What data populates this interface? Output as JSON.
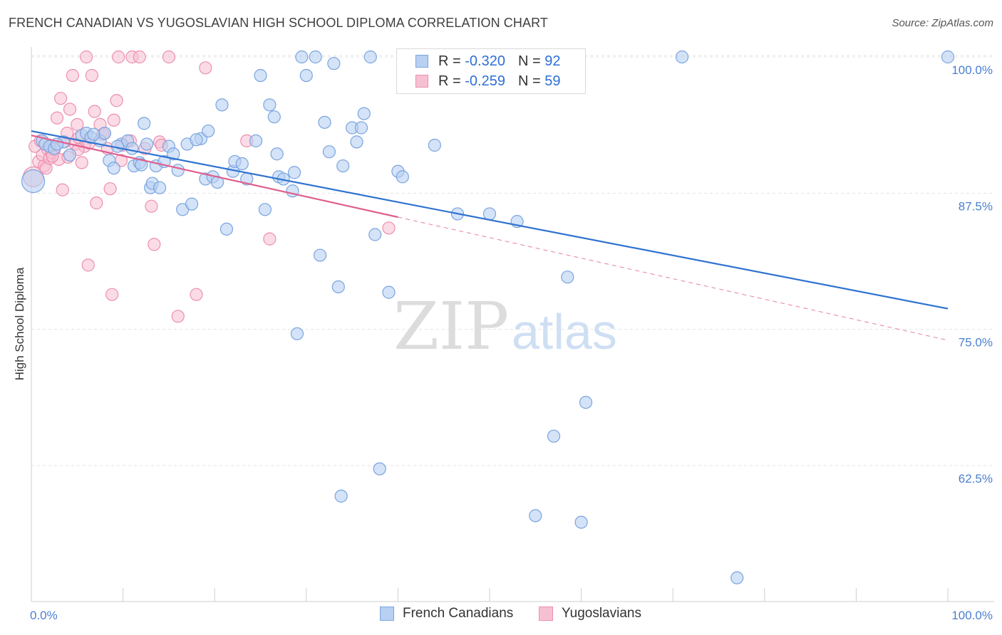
{
  "title": "FRENCH CANADIAN VS YUGOSLAVIAN HIGH SCHOOL DIPLOMA CORRELATION CHART",
  "source": "Source: ZipAtlas.com",
  "watermark": {
    "zip": "ZIP",
    "atlas": "atlas"
  },
  "legend": {
    "row1": {
      "r_label": "R =",
      "r_value": "-0.320",
      "n_label": "N =",
      "n_value": "92"
    },
    "row2": {
      "r_label": "R =",
      "r_value": "-0.259",
      "n_label": "N =",
      "n_value": "59"
    }
  },
  "bottom_legend": {
    "french": "French Canadians",
    "yugo": "Yugoslavians"
  },
  "colors": {
    "blue_fill": "#b8d0f2",
    "blue_stroke": "#7aa4df",
    "blue_line": "#2f72d0",
    "pink_fill": "#f7c0d2",
    "pink_stroke": "#ec8fae",
    "pink_line": "#e05e8e",
    "grid": "#e3e3e3",
    "tick_text": "#4a7fd1"
  },
  "chart_data": {
    "type": "scatter",
    "title": "FRENCH CANADIAN VS YUGOSLAVIAN HIGH SCHOOL DIPLOMA CORRELATION CHART",
    "xlabel": "",
    "ylabel": "High School Diploma",
    "xlim": [
      0,
      100
    ],
    "ylim": [
      50,
      101.5
    ],
    "x_tick_labels": [
      "0.0%",
      "100.0%"
    ],
    "y_ticks": [
      62.5,
      75.0,
      87.5,
      100.0
    ],
    "y_tick_labels": [
      "62.5%",
      "75.0%",
      "87.5%",
      "100.0%"
    ],
    "series": [
      {
        "name": "French Canadians",
        "r": -0.32,
        "n": 92,
        "trend": {
          "x": [
            0,
            100
          ],
          "y": [
            93.2,
            76.9
          ]
        },
        "points": [
          [
            0.2,
            88.6
          ],
          [
            1.2,
            92.3
          ],
          [
            1.5,
            92.0
          ],
          [
            2.0,
            91.8
          ],
          [
            2.5,
            91.6
          ],
          [
            3.5,
            92.2
          ],
          [
            4.2,
            91.0
          ],
          [
            5.5,
            92.8
          ],
          [
            6.0,
            93.0
          ],
          [
            6.5,
            92.6
          ],
          [
            7.5,
            92.3
          ],
          [
            8.0,
            93.0
          ],
          [
            8.5,
            90.5
          ],
          [
            9.0,
            89.8
          ],
          [
            9.8,
            92.0
          ],
          [
            10.5,
            92.3
          ],
          [
            11.0,
            91.6
          ],
          [
            11.2,
            90.0
          ],
          [
            11.8,
            90.3
          ],
          [
            12.3,
            93.9
          ],
          [
            12.6,
            92.0
          ],
          [
            13.0,
            88.0
          ],
          [
            13.2,
            88.4
          ],
          [
            13.6,
            90.0
          ],
          [
            14.0,
            88.0
          ],
          [
            14.5,
            90.4
          ],
          [
            15.0,
            91.8
          ],
          [
            15.5,
            91.1
          ],
          [
            16.0,
            89.6
          ],
          [
            16.5,
            86.0
          ],
          [
            17.0,
            92.0
          ],
          [
            17.5,
            86.5
          ],
          [
            18.5,
            92.5
          ],
          [
            19.0,
            88.8
          ],
          [
            19.3,
            93.2
          ],
          [
            19.8,
            89.0
          ],
          [
            20.3,
            88.5
          ],
          [
            20.8,
            95.6
          ],
          [
            21.3,
            84.2
          ],
          [
            22.0,
            89.5
          ],
          [
            22.2,
            90.4
          ],
          [
            23.0,
            90.2
          ],
          [
            23.5,
            88.8
          ],
          [
            24.5,
            92.3
          ],
          [
            25.0,
            98.3
          ],
          [
            25.5,
            86.0
          ],
          [
            26.0,
            95.6
          ],
          [
            26.5,
            94.5
          ],
          [
            26.8,
            91.1
          ],
          [
            27.0,
            89.0
          ],
          [
            27.5,
            88.8
          ],
          [
            28.5,
            87.7
          ],
          [
            28.7,
            89.4
          ],
          [
            29.0,
            74.6
          ],
          [
            29.5,
            100.0
          ],
          [
            30.0,
            98.3
          ],
          [
            31.0,
            100.0
          ],
          [
            31.5,
            81.8
          ],
          [
            32.0,
            94.0
          ],
          [
            32.5,
            91.3
          ],
          [
            33.0,
            99.4
          ],
          [
            33.5,
            78.9
          ],
          [
            34.0,
            90.0
          ],
          [
            35.0,
            93.5
          ],
          [
            35.5,
            92.2
          ],
          [
            36.0,
            93.5
          ],
          [
            36.3,
            94.8
          ],
          [
            37.0,
            100.0
          ],
          [
            37.5,
            83.7
          ],
          [
            38.0,
            62.2
          ],
          [
            39.0,
            78.4
          ],
          [
            40.0,
            89.5
          ],
          [
            40.5,
            89.0
          ],
          [
            44.0,
            91.9
          ],
          [
            46.5,
            85.6
          ],
          [
            47.5,
            100.0
          ],
          [
            50.0,
            85.6
          ],
          [
            53.0,
            84.9
          ],
          [
            55.0,
            57.9
          ],
          [
            57.0,
            65.2
          ],
          [
            58.5,
            79.8
          ],
          [
            60.0,
            57.3
          ],
          [
            60.5,
            68.3
          ],
          [
            71.0,
            100.0
          ],
          [
            77.0,
            52.2
          ],
          [
            100.0,
            100.0
          ],
          [
            33.8,
            59.7
          ],
          [
            2.8,
            92.0
          ],
          [
            6.8,
            92.9
          ],
          [
            9.4,
            91.8
          ],
          [
            18.0,
            92.4
          ],
          [
            12.0,
            90.1
          ]
        ]
      },
      {
        "name": "Yugoslavians",
        "r": -0.259,
        "n": 59,
        "trend": {
          "x": [
            0,
            40
          ],
          "y": [
            92.8,
            85.3
          ]
        },
        "trend_dashed": {
          "x": [
            40,
            100
          ],
          "y": [
            85.3,
            74.0
          ]
        },
        "points": [
          [
            0.2,
            89.0
          ],
          [
            0.4,
            91.8
          ],
          [
            0.8,
            90.4
          ],
          [
            1.0,
            92.3
          ],
          [
            1.2,
            91.0
          ],
          [
            1.4,
            90.0
          ],
          [
            1.6,
            89.8
          ],
          [
            1.8,
            91.5
          ],
          [
            2.0,
            90.7
          ],
          [
            2.2,
            91.2
          ],
          [
            2.5,
            91.5
          ],
          [
            2.8,
            94.4
          ],
          [
            3.0,
            90.6
          ],
          [
            3.2,
            96.2
          ],
          [
            3.4,
            87.8
          ],
          [
            3.6,
            92.2
          ],
          [
            3.9,
            93.0
          ],
          [
            4.2,
            95.2
          ],
          [
            4.5,
            98.3
          ],
          [
            4.8,
            92.0
          ],
          [
            5.0,
            93.8
          ],
          [
            5.2,
            92.6
          ],
          [
            5.5,
            90.3
          ],
          [
            5.8,
            91.8
          ],
          [
            6.0,
            100.0
          ],
          [
            6.3,
            92.1
          ],
          [
            6.6,
            98.3
          ],
          [
            6.9,
            95.0
          ],
          [
            7.1,
            86.6
          ],
          [
            7.5,
            93.8
          ],
          [
            7.8,
            92.9
          ],
          [
            8.0,
            93.0
          ],
          [
            8.3,
            91.6
          ],
          [
            8.6,
            87.9
          ],
          [
            8.8,
            78.2
          ],
          [
            9.0,
            94.2
          ],
          [
            9.3,
            96.0
          ],
          [
            9.5,
            100.0
          ],
          [
            9.8,
            90.5
          ],
          [
            10.0,
            91.9
          ],
          [
            10.8,
            92.3
          ],
          [
            11.0,
            100.0
          ],
          [
            11.8,
            100.0
          ],
          [
            12.4,
            91.6
          ],
          [
            13.1,
            86.3
          ],
          [
            13.4,
            82.8
          ],
          [
            14.0,
            92.2
          ],
          [
            14.2,
            91.9
          ],
          [
            15.0,
            100.0
          ],
          [
            16.0,
            76.2
          ],
          [
            18.0,
            78.2
          ],
          [
            19.0,
            99.0
          ],
          [
            23.5,
            92.3
          ],
          [
            26.0,
            83.3
          ],
          [
            39.0,
            84.3
          ],
          [
            6.2,
            80.9
          ],
          [
            2.3,
            90.9
          ],
          [
            4.0,
            90.8
          ],
          [
            5.1,
            91.5
          ]
        ]
      }
    ]
  }
}
